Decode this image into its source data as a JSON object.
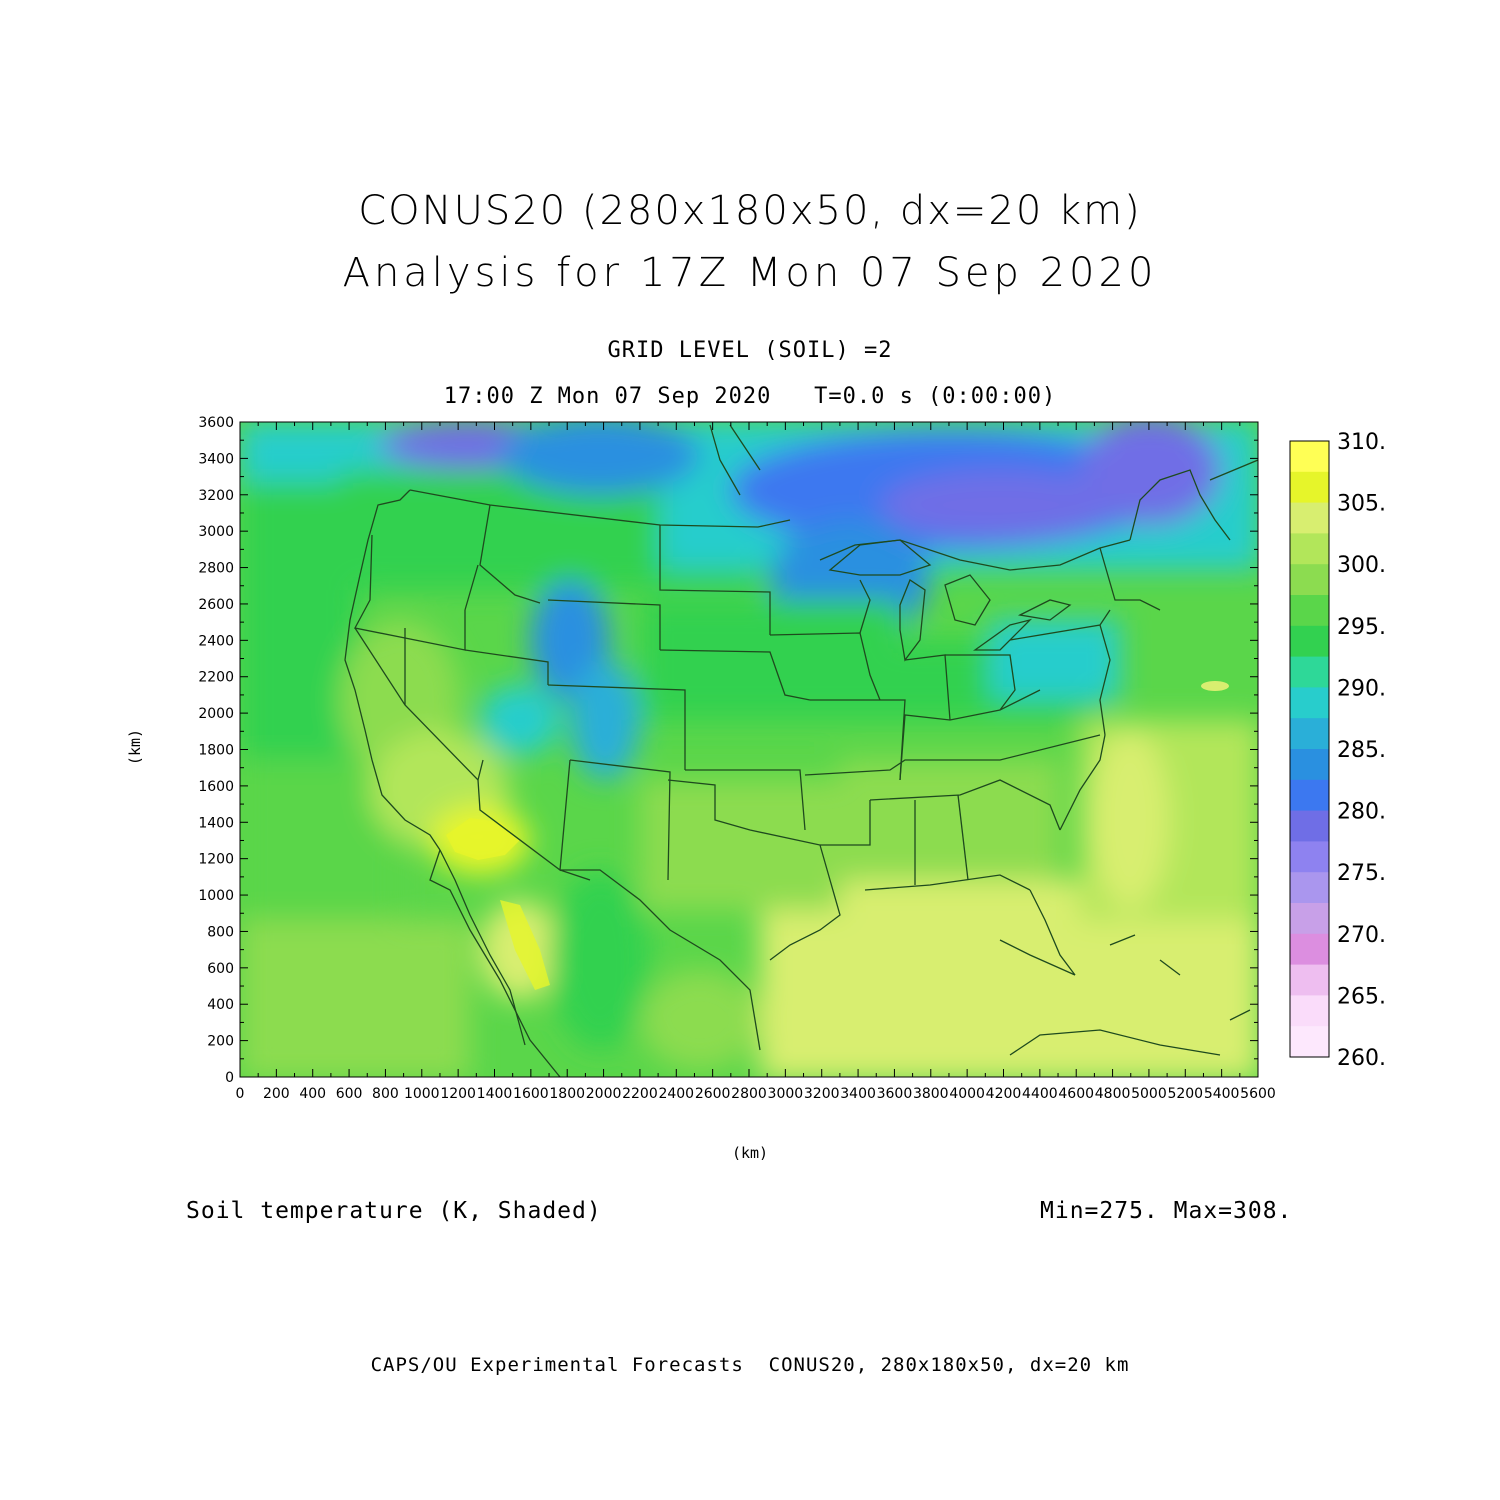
{
  "header": {
    "title_line1": "CONUS20 (280x180x50, dx=20 km)",
    "title_line2": "Analysis for 17Z Mon 07 Sep 2020",
    "subtitle_line1": "GRID LEVEL (SOIL) =2",
    "subtitle_line2": "17:00 Z Mon 07 Sep 2020   T=0.0 s (0:00:00)"
  },
  "axes": {
    "x_label": "(km)",
    "y_label": "(km)",
    "x_ticks": [
      "0",
      "200",
      "400",
      "600",
      "800",
      "1000",
      "1200",
      "1400",
      "1600",
      "1800",
      "2000",
      "2200",
      "2400",
      "2600",
      "2800",
      "3000",
      "3200",
      "3400",
      "3600",
      "3800",
      "4000",
      "4200",
      "4400",
      "4600",
      "4800",
      "5000",
      "5200",
      "5400",
      "5600"
    ],
    "y_ticks": [
      "0",
      "200",
      "400",
      "600",
      "800",
      "1000",
      "1200",
      "1400",
      "1600",
      "1800",
      "2000",
      "2200",
      "2400",
      "2600",
      "2800",
      "3000",
      "3200",
      "3400",
      "3600"
    ],
    "x_range": [
      0,
      5600
    ],
    "y_range": [
      0,
      3600
    ]
  },
  "colorbar": {
    "labels": [
      "310.",
      "305.",
      "300.",
      "295.",
      "290.",
      "285.",
      "280.",
      "275.",
      "270.",
      "265.",
      "260."
    ],
    "colors": [
      "#ffff55",
      "#e6f52a",
      "#d8ee70",
      "#b2e65a",
      "#8cdc50",
      "#5ad64a",
      "#32d150",
      "#2ed898",
      "#28cdcc",
      "#2aafd8",
      "#2a90e0",
      "#3c78f0",
      "#6f6ee6",
      "#8e82f0",
      "#aa96ee",
      "#c8a0e8",
      "#dc8ee0",
      "#eebef0",
      "#fadcfa",
      "#fde8fd"
    ]
  },
  "footer": {
    "variable": "Soil temperature (K, Shaded)",
    "minmax": "Min=275. Max=308.",
    "credits": "CAPS/OU Experimental Forecasts  CONUS20, 280x180x50, dx=20 km"
  }
}
